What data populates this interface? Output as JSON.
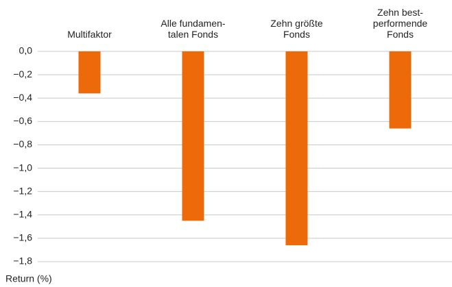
{
  "chart_data": {
    "type": "bar",
    "categories": [
      "Multifaktor",
      "Alle fundamen-\ntalen Fonds",
      "Zehn größte\nFonds",
      "Zehn best-\nperformende\nFonds"
    ],
    "values": [
      -0.36,
      -1.45,
      -1.66,
      -0.66
    ],
    "color": "#ec6a0a",
    "ylim": [
      -1.8,
      0
    ],
    "yticks": [
      {
        "value": 0,
        "label": "0,0"
      },
      {
        "value": -0.2,
        "label": "−0,2"
      },
      {
        "value": -0.4,
        "label": "−0,4"
      },
      {
        "value": -0.6,
        "label": "−0,6"
      },
      {
        "value": -0.8,
        "label": "−0,8"
      },
      {
        "value": -1.0,
        "label": "−1,0"
      },
      {
        "value": -1.2,
        "label": "−1,2"
      },
      {
        "value": -1.4,
        "label": "−1,4"
      },
      {
        "value": -1.6,
        "label": "−1,6"
      },
      {
        "value": -1.8,
        "label": "−1,8"
      }
    ],
    "y_label": "Return (%)",
    "grid": true
  }
}
